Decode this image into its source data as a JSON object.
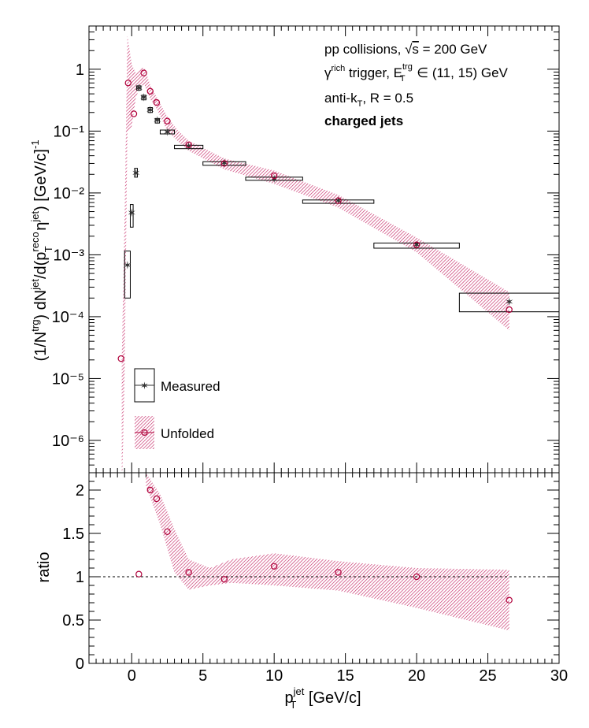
{
  "colors": {
    "measured": "#333333",
    "unfolded": "#b0003a",
    "band": "#c2185b",
    "axis": "#000000"
  },
  "top_panel": {
    "ylabel": "(1/N^{trg}) dN^{jet}/d(p_{T}^{reco} η^{jet}) [GeV/c]^{-1}",
    "ytick_labels": [
      "10⁻⁶",
      "10⁻⁵",
      "10⁻⁴",
      "10⁻³",
      "10⁻²",
      "10⁻¹",
      "1"
    ],
    "annotations": {
      "line1": "pp collisions, √s = 200 GeV",
      "line2": "γ^{rich} trigger, E_{T}^{trg} ∈ (11, 15) GeV",
      "line3": "anti-k_{T}, R = 0.5",
      "line4": "charged jets"
    },
    "legend": {
      "measured": "Measured",
      "unfolded": "Unfolded"
    }
  },
  "bottom_panel": {
    "ylabel": "ratio",
    "ytick_labels": [
      "0",
      "0.5",
      "1",
      "1.5",
      "2"
    ],
    "xlabel": "p_{T}^{jet} [GeV/c]",
    "xtick_labels": [
      "0",
      "5",
      "10",
      "15",
      "20",
      "25",
      "30"
    ]
  },
  "chart_data": [
    {
      "type": "scatter",
      "panel": "top",
      "title": "",
      "xlabel": "",
      "ylabel": "(1/N^{trg}) dN^{jet}/d(p_{T}^{reco} η^{jet}) [GeV/c]^{-1}",
      "xlim": [
        -3,
        30
      ],
      "ylim": [
        3e-07,
        5
      ],
      "yscale": "log",
      "series": [
        {
          "name": "Measured",
          "x": [
            -0.3,
            0.0,
            0.3,
            0.5,
            0.85,
            1.3,
            1.8,
            2.5,
            4.0,
            6.5,
            10.0,
            14.5,
            20.0,
            26.5
          ],
          "y": [
            0.00068,
            0.0048,
            0.021,
            0.5,
            0.35,
            0.22,
            0.15,
            0.097,
            0.057,
            0.031,
            0.017,
            0.0075,
            0.00145,
            0.000175
          ],
          "sys_box": [
            [
              -0.5,
              -0.1,
              0.0002,
              0.00115
            ],
            [
              -0.1,
              0.1,
              0.0028,
              0.0065
            ],
            [
              0.2,
              0.4,
              0.018,
              0.025
            ],
            [
              0.35,
              0.65,
              0.46,
              0.54
            ],
            [
              0.7,
              1.0,
              0.32,
              0.38
            ],
            [
              1.15,
              1.45,
              0.2,
              0.24
            ],
            [
              1.65,
              1.95,
              0.135,
              0.16
            ],
            [
              2.0,
              3.0,
              0.09,
              0.104
            ],
            [
              3.0,
              5.0,
              0.052,
              0.059
            ],
            [
              5.0,
              8.0,
              0.028,
              0.032
            ],
            [
              8.0,
              12.0,
              0.016,
              0.018
            ],
            [
              12.0,
              17.0,
              0.0068,
              0.0077
            ],
            [
              17.0,
              23.0,
              0.00128,
              0.00155
            ],
            [
              23.0,
              30.0,
              0.00012,
              0.00024
            ]
          ]
        },
        {
          "name": "Unfolded",
          "x": [
            -0.75,
            -0.25,
            0.15,
            0.85,
            1.3,
            1.75,
            2.5,
            4.0,
            6.5,
            10.0,
            14.5,
            20.0,
            26.5
          ],
          "y": [
            2.1e-05,
            0.6,
            0.19,
            0.87,
            0.44,
            0.29,
            0.145,
            0.06,
            0.03,
            0.019,
            0.0075,
            0.00145,
            0.00013
          ]
        }
      ],
      "band": {
        "x": [
          -0.7,
          -0.5,
          -0.3,
          0.0,
          0.3,
          0.6,
          0.9,
          1.3,
          1.8,
          2.5,
          3.2,
          4.0,
          6.5,
          10.0,
          14.5,
          20.0,
          26.5
        ],
        "lo": [
          1e-07,
          1e-05,
          0.1,
          0.12,
          0.35,
          0.55,
          0.55,
          0.33,
          0.22,
          0.1,
          0.07,
          0.048,
          0.024,
          0.014,
          0.0058,
          0.0011,
          6e-05
        ],
        "hi": [
          2e-05,
          0.004,
          3.5,
          1.2,
          0.85,
          1.05,
          1.05,
          0.55,
          0.34,
          0.17,
          0.105,
          0.07,
          0.036,
          0.023,
          0.0093,
          0.0019,
          0.00025
        ]
      }
    },
    {
      "type": "scatter",
      "panel": "bottom",
      "title": "",
      "xlabel": "p_{T}^{jet} [GeV/c]",
      "ylabel": "ratio",
      "xlim": [
        -3,
        30
      ],
      "ylim": [
        0,
        2.2
      ],
      "reference_line": 1.0,
      "series": [
        {
          "name": "ratio",
          "x": [
            0.5,
            1.3,
            1.75,
            2.5,
            4.0,
            6.5,
            10.0,
            14.5,
            20.0,
            26.5
          ],
          "y": [
            1.03,
            2.0,
            1.9,
            1.52,
            1.05,
            0.97,
            1.12,
            1.05,
            1.0,
            0.73
          ]
        }
      ],
      "band": {
        "x": [
          1.0,
          2.0,
          3.0,
          4.0,
          5.5,
          7.0,
          10.0,
          14.5,
          20.0,
          26.5
        ],
        "lo": [
          2.05,
          1.6,
          1.05,
          0.85,
          0.9,
          0.93,
          0.9,
          0.84,
          0.64,
          0.38
        ],
        "hi": [
          2.2,
          1.95,
          1.55,
          1.2,
          1.1,
          1.2,
          1.27,
          1.18,
          1.1,
          1.08
        ]
      }
    }
  ]
}
